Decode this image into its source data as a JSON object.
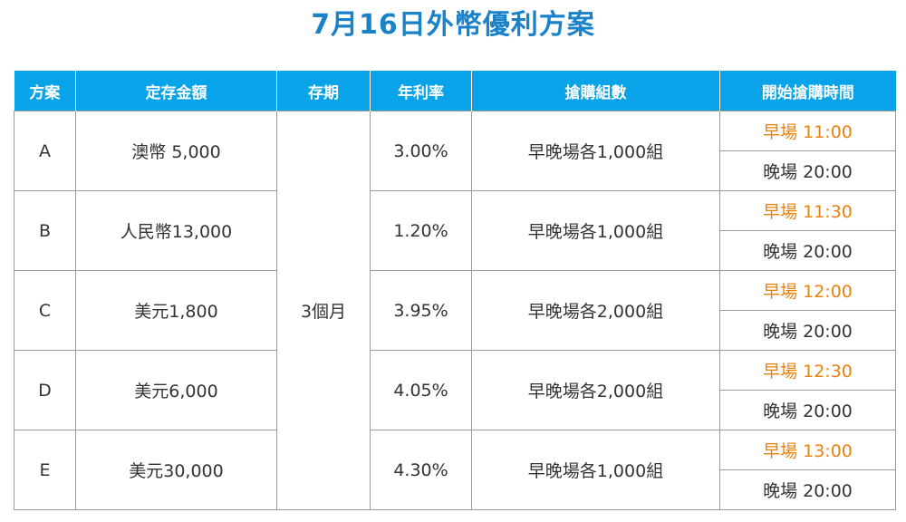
{
  "title": "7月16日外幣優利方案",
  "table": {
    "headers": [
      "方案",
      "定存金額",
      "存期",
      "年利率",
      "搶購組數",
      "開始搶購時間"
    ],
    "term": "3個月",
    "rows": [
      {
        "plan": "A",
        "amount": "澳幣 5,000",
        "rate": "3.00%",
        "groups": "早晚場各1,000組",
        "morning": "早場 11:00",
        "evening": "晚場 20:00"
      },
      {
        "plan": "B",
        "amount": "人民幣13,000",
        "rate": "1.20%",
        "groups": "早晚場各1,000組",
        "morning": "早場 11:30",
        "evening": "晚場 20:00"
      },
      {
        "plan": "C",
        "amount": "美元1,800",
        "rate": "3.95%",
        "groups": "早晚場各2,000組",
        "morning": "早場 12:00",
        "evening": "晚場 20:00"
      },
      {
        "plan": "D",
        "amount": "美元6,000",
        "rate": "4.05%",
        "groups": "早晚場各2,000組",
        "morning": "早場 12:30",
        "evening": "晚場 20:00"
      },
      {
        "plan": "E",
        "amount": "美元30,000",
        "rate": "4.30%",
        "groups": "早晚場各1,000組",
        "morning": "早場 13:00",
        "evening": "晚場 20:00"
      }
    ]
  },
  "colors": {
    "title": "#1a82c9",
    "header_bg": "#08a3e8",
    "morning_time": "#e8820e",
    "text": "#333333",
    "border": "#9a9a9a"
  }
}
